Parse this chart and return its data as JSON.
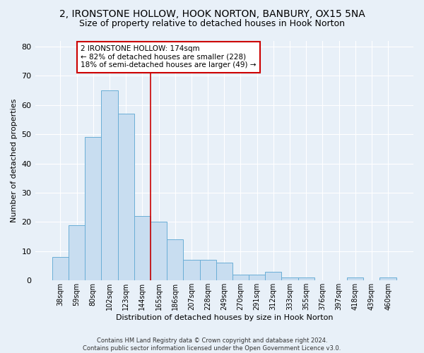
{
  "title": "2, IRONSTONE HOLLOW, HOOK NORTON, BANBURY, OX15 5NA",
  "subtitle": "Size of property relative to detached houses in Hook Norton",
  "xlabel": "Distribution of detached houses by size in Hook Norton",
  "ylabel": "Number of detached properties",
  "categories": [
    "38sqm",
    "59sqm",
    "80sqm",
    "102sqm",
    "123sqm",
    "144sqm",
    "165sqm",
    "186sqm",
    "207sqm",
    "228sqm",
    "249sqm",
    "270sqm",
    "291sqm",
    "312sqm",
    "333sqm",
    "355sqm",
    "376sqm",
    "397sqm",
    "418sqm",
    "439sqm",
    "460sqm"
  ],
  "values": [
    8,
    19,
    49,
    65,
    57,
    22,
    20,
    14,
    7,
    7,
    6,
    2,
    2,
    3,
    1,
    1,
    0,
    0,
    1,
    0,
    1
  ],
  "bar_color": "#c8ddf0",
  "bar_edge_color": "#6aaed6",
  "vline_x": 5.5,
  "vline_color": "#cc0000",
  "annotation_text": "2 IRONSTONE HOLLOW: 174sqm\n← 82% of detached houses are smaller (228)\n18% of semi-detached houses are larger (49) →",
  "annotation_box_color": "#ffffff",
  "annotation_box_edge": "#cc0000",
  "ylim": [
    0,
    82
  ],
  "yticks": [
    0,
    10,
    20,
    30,
    40,
    50,
    60,
    70,
    80
  ],
  "title_fontsize": 10,
  "subtitle_fontsize": 9,
  "footer": "Contains HM Land Registry data © Crown copyright and database right 2024.\nContains public sector information licensed under the Open Government Licence v3.0.",
  "bg_color": "#e8f0f8",
  "plot_bg": "#e8f0f8",
  "grid_color": "#ffffff"
}
